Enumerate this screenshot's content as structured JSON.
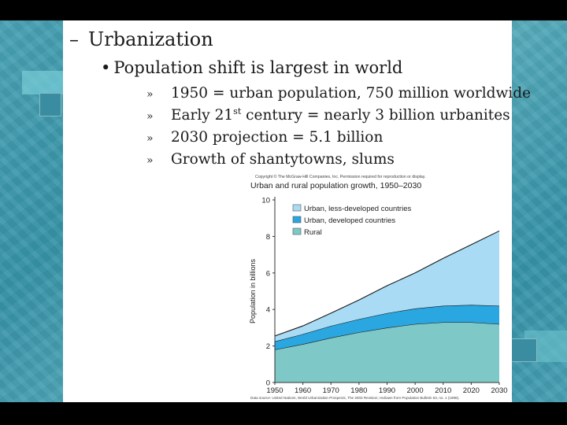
{
  "slide": {
    "heading": {
      "bullet": "–",
      "text": "Urbanization"
    },
    "subheading": {
      "bullet": "•",
      "text": "Population shift is largest in world"
    },
    "points": [
      {
        "bullet": "»",
        "parts": [
          {
            "t": "1950 = urban population, 750 million worldwide"
          }
        ]
      },
      {
        "bullet": "»",
        "parts": [
          {
            "t": "Early 21"
          },
          {
            "t": "st",
            "sup": true
          },
          {
            "t": " century = nearly 3 billion urbanites"
          }
        ]
      },
      {
        "bullet": "»",
        "parts": [
          {
            "t": "2030 projection = 5.1 billion"
          }
        ]
      },
      {
        "bullet": "»",
        "parts": [
          {
            "t": "Growth of shantytowns, slums"
          }
        ]
      }
    ]
  },
  "chart_data": {
    "type": "area",
    "copyright": "Copyright © The McGraw-Hill Companies, Inc. Permission required for reproduction or display.",
    "title": "Urban and rural population growth, 1950–2030",
    "xlabel": "",
    "ylabel": "Population in billions",
    "source": "Data source: United Nations, World Urbanization Prospects, The 2003 Revision; redrawn from Population Bulletin 53, no. 1 (1998).",
    "x": [
      1950,
      1960,
      1970,
      1980,
      1990,
      2000,
      2010,
      2020,
      2030
    ],
    "xlim": [
      1950,
      2030
    ],
    "ylim": [
      0,
      10
    ],
    "yticks": [
      0,
      2,
      4,
      6,
      8,
      10
    ],
    "stacked": true,
    "series": [
      {
        "name": "Rural",
        "color": "#7ec8c8",
        "values": [
          1.8,
          2.1,
          2.45,
          2.75,
          3.0,
          3.2,
          3.3,
          3.3,
          3.2
        ]
      },
      {
        "name": "Urban, developed countries",
        "color": "#2aa6e0",
        "values": [
          0.45,
          0.55,
          0.65,
          0.72,
          0.8,
          0.85,
          0.9,
          0.95,
          1.0
        ]
      },
      {
        "name": "Urban, less-developed countries",
        "color": "#a9dcf4",
        "values": [
          0.3,
          0.45,
          0.7,
          1.05,
          1.5,
          1.95,
          2.6,
          3.3,
          4.1
        ]
      }
    ],
    "legend": {
      "position": "top-left",
      "order": [
        "Urban, less-developed countries",
        "Urban, developed countries",
        "Rural"
      ]
    }
  }
}
